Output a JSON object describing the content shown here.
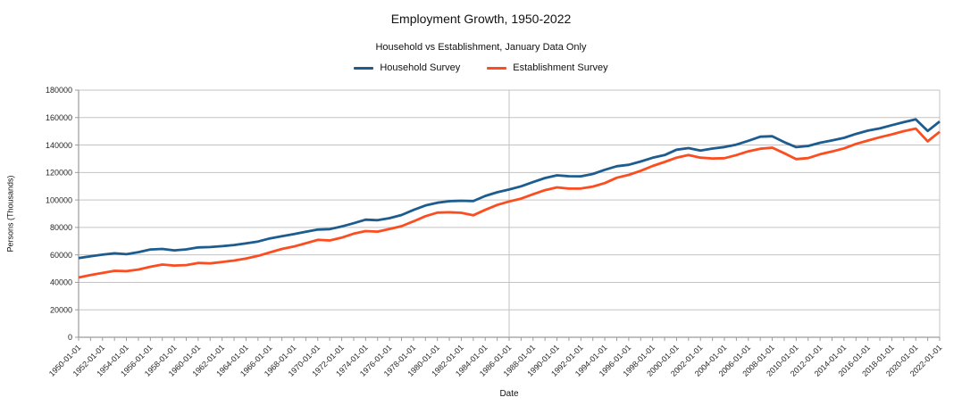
{
  "chart_data": {
    "type": "line",
    "title": "Employment Growth, 1950-2022",
    "subtitle": "Household vs Establishment, January Data Only",
    "xlabel": "Date",
    "ylabel": "Persons (Thousands)",
    "legend_position": "top-center",
    "grid": {
      "horizontal": true,
      "vertical_gridline_years": [
        1986,
        2022
      ]
    },
    "ylim": [
      0,
      180000
    ],
    "y_ticks": [
      0,
      20000,
      40000,
      60000,
      80000,
      100000,
      120000,
      140000,
      160000,
      180000
    ],
    "x_tick_labels": [
      "1950-01-01",
      "1952-01-01",
      "1954-01-01",
      "1956-01-01",
      "1958-01-01",
      "1960-01-01",
      "1962-01-01",
      "1964-01-01",
      "1966-01-01",
      "1968-01-01",
      "1970-01-01",
      "1972-01-01",
      "1974-01-01",
      "1976-01-01",
      "1978-01-01",
      "1980-01-01",
      "1982-01-01",
      "1984-01-01",
      "1986-01-01",
      "1988-01-01",
      "1990-01-01",
      "1992-01-01",
      "1994-01-01",
      "1996-01-01",
      "1998-01-01",
      "2000-01-01",
      "2002-01-01",
      "2004-01-01",
      "2006-01-01",
      "2008-01-01",
      "2010-01-01",
      "2012-01-01",
      "2014-01-01",
      "2016-01-01",
      "2018-01-01",
      "2020-01-01",
      "2022-01-01"
    ],
    "x_tick_label_step_years": 2,
    "x_minor_tick_step_years": 1,
    "x_years": [
      1950,
      1951,
      1952,
      1953,
      1954,
      1955,
      1956,
      1957,
      1958,
      1959,
      1960,
      1961,
      1962,
      1963,
      1964,
      1965,
      1966,
      1967,
      1968,
      1969,
      1970,
      1971,
      1972,
      1973,
      1974,
      1975,
      1976,
      1977,
      1978,
      1979,
      1980,
      1981,
      1982,
      1983,
      1984,
      1985,
      1986,
      1987,
      1988,
      1989,
      1990,
      1991,
      1992,
      1993,
      1994,
      1995,
      1996,
      1997,
      1998,
      1999,
      2000,
      2001,
      2002,
      2003,
      2004,
      2005,
      2006,
      2007,
      2008,
      2009,
      2010,
      2011,
      2012,
      2013,
      2014,
      2015,
      2016,
      2017,
      2018,
      2019,
      2020,
      2021,
      2022
    ],
    "series": [
      {
        "name": "Household Survey",
        "color": "#1d5c8f",
        "values": [
          57635,
          59000,
          60190,
          61180,
          60510,
          62020,
          63960,
          64330,
          63270,
          63990,
          65450,
          65680,
          66350,
          67160,
          68330,
          69740,
          72020,
          73600,
          75110,
          76900,
          78440,
          78750,
          80730,
          83050,
          85650,
          85240,
          86740,
          89040,
          92760,
          95960,
          98000,
          99080,
          99400,
          99160,
          102910,
          105620,
          107590,
          109930,
          113000,
          115990,
          117910,
          117290,
          117240,
          118900,
          121960,
          124600,
          125610,
          128010,
          130720,
          132670,
          136560,
          137790,
          136000,
          137450,
          138570,
          140270,
          143120,
          146060,
          146400,
          142100,
          138450,
          139290,
          141680,
          143380,
          145210,
          148100,
          150530,
          152130,
          154450,
          156660,
          158710,
          150220,
          157170
        ]
      },
      {
        "name": "Establishment Survey",
        "color": "#fb4d20",
        "values": [
          43530,
          45340,
          46820,
          48440,
          48150,
          49350,
          51340,
          52930,
          52270,
          52580,
          54110,
          53810,
          54870,
          55880,
          57390,
          59290,
          61770,
          64350,
          66110,
          68470,
          70930,
          70500,
          72580,
          75450,
          77320,
          76940,
          78870,
          80920,
          84380,
          88170,
          90800,
          91030,
          90660,
          88840,
          92770,
          96350,
          98910,
          100990,
          104160,
          107160,
          109190,
          108280,
          108320,
          109770,
          112270,
          116170,
          118280,
          121270,
          124750,
          127660,
          130780,
          132690,
          130820,
          130210,
          130430,
          132690,
          135450,
          137330,
          138060,
          134090,
          129800,
          130500,
          133250,
          135270,
          137570,
          140790,
          143310,
          145670,
          147800,
          150090,
          151980,
          142670,
          149630
        ]
      }
    ],
    "colors": {
      "gridline": "#c3c3c3",
      "axis": "#9b9b9b",
      "tick_label": "#262626"
    }
  }
}
